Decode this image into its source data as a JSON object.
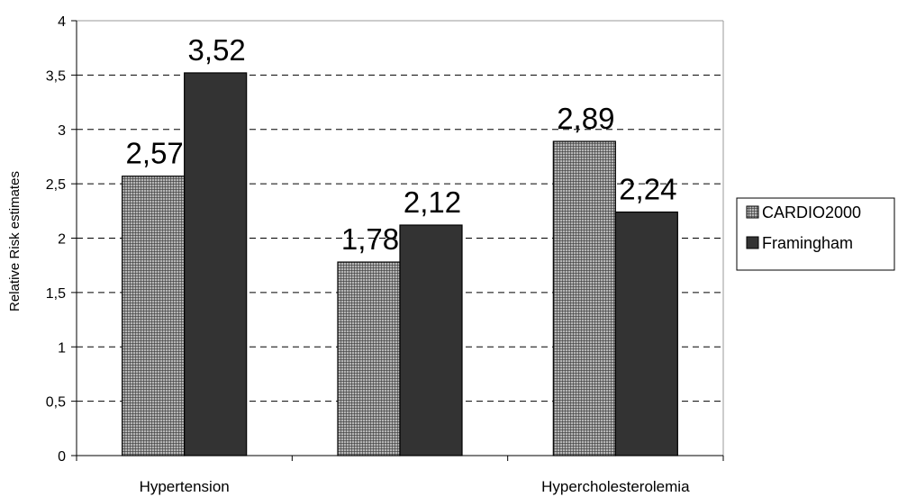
{
  "chart_data": {
    "type": "bar",
    "title": "",
    "xlabel": "",
    "ylabel": "Relative Risk estimates",
    "ylim": [
      0,
      4
    ],
    "yticks": [
      "0",
      "0,5",
      "1",
      "1,5",
      "2",
      "2,5",
      "3",
      "3,5",
      "4"
    ],
    "categories": [
      "Hypertension",
      "",
      "Hypercholesterolemia"
    ],
    "series": [
      {
        "name": "CARDIO2000",
        "values": [
          2.57,
          1.78,
          2.89
        ],
        "labels": [
          "2,57",
          "1,78",
          "2,89"
        ],
        "color": "#8c8c8c",
        "pattern": "fine-grid"
      },
      {
        "name": "Framingham",
        "values": [
          3.52,
          2.12,
          2.24
        ],
        "labels": [
          "3,52",
          "2,12",
          "2,24"
        ],
        "color": "#333333",
        "pattern": "solid"
      }
    ],
    "grid": true,
    "legend": "right"
  }
}
